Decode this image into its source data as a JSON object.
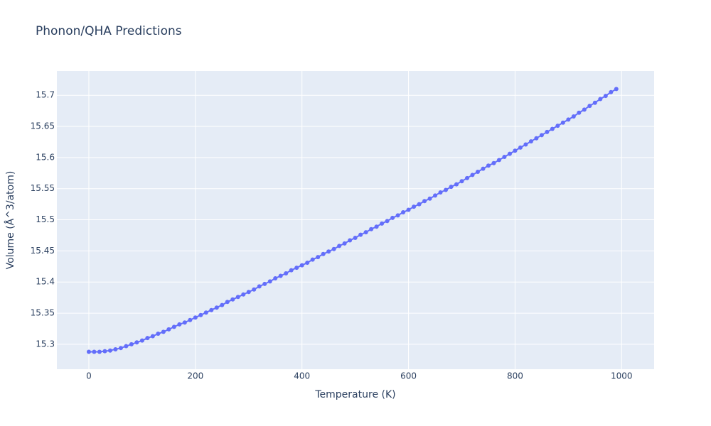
{
  "chart_data": {
    "type": "line",
    "title": "Phonon/QHA Predictions",
    "x_label": "Temperature (K)",
    "y_label": "Volume (Å^3/atom)",
    "x": [
      0,
      10,
      20,
      30,
      40,
      50,
      60,
      70,
      80,
      90,
      100,
      110,
      120,
      130,
      140,
      150,
      160,
      170,
      180,
      190,
      200,
      210,
      220,
      230,
      240,
      250,
      260,
      270,
      280,
      290,
      300,
      310,
      320,
      330,
      340,
      350,
      360,
      370,
      380,
      390,
      400,
      410,
      420,
      430,
      440,
      450,
      460,
      470,
      480,
      490,
      500,
      510,
      520,
      530,
      540,
      550,
      560,
      570,
      580,
      590,
      600,
      610,
      620,
      630,
      640,
      650,
      660,
      670,
      680,
      690,
      700,
      710,
      720,
      730,
      740,
      750,
      760,
      770,
      780,
      790,
      800,
      810,
      820,
      830,
      840,
      850,
      860,
      870,
      880,
      890,
      900,
      910,
      920,
      930,
      940,
      950,
      960,
      970,
      980,
      990
    ],
    "series": [
      {
        "name": "Volume",
        "color": "#636efa",
        "values": [
          15.288,
          15.288,
          15.288,
          15.289,
          15.29,
          15.292,
          15.294,
          15.297,
          15.3,
          15.303,
          15.306,
          15.31,
          15.313,
          15.317,
          15.32,
          15.324,
          15.328,
          15.332,
          15.335,
          15.339,
          15.343,
          15.347,
          15.351,
          15.355,
          15.359,
          15.363,
          15.368,
          15.372,
          15.376,
          15.38,
          15.384,
          15.388,
          15.393,
          15.397,
          15.401,
          15.406,
          15.41,
          15.414,
          15.419,
          15.423,
          15.427,
          15.431,
          15.436,
          15.44,
          15.445,
          15.449,
          15.453,
          15.458,
          15.462,
          15.467,
          15.471,
          15.476,
          15.48,
          15.485,
          15.489,
          15.494,
          15.498,
          15.503,
          15.507,
          15.512,
          15.516,
          15.521,
          15.525,
          15.53,
          15.534,
          15.539,
          15.544,
          15.548,
          15.553,
          15.557,
          15.562,
          15.567,
          15.572,
          15.577,
          15.582,
          15.587,
          15.591,
          15.596,
          15.601,
          15.606,
          15.611,
          15.616,
          15.621,
          15.626,
          15.631,
          15.636,
          15.641,
          15.646,
          15.651,
          15.656,
          15.661,
          15.666,
          15.672,
          15.677,
          15.683,
          15.688,
          15.694,
          15.699,
          15.705,
          15.71
        ]
      }
    ],
    "xlim": [
      -60,
      1061
    ],
    "ylim": [
      15.26,
      15.739
    ],
    "xticks": [
      0,
      200,
      400,
      600,
      800,
      1000
    ],
    "yticks": [
      15.3,
      15.35,
      15.4,
      15.45,
      15.5,
      15.55,
      15.6,
      15.65,
      15.7
    ],
    "grid": true
  }
}
